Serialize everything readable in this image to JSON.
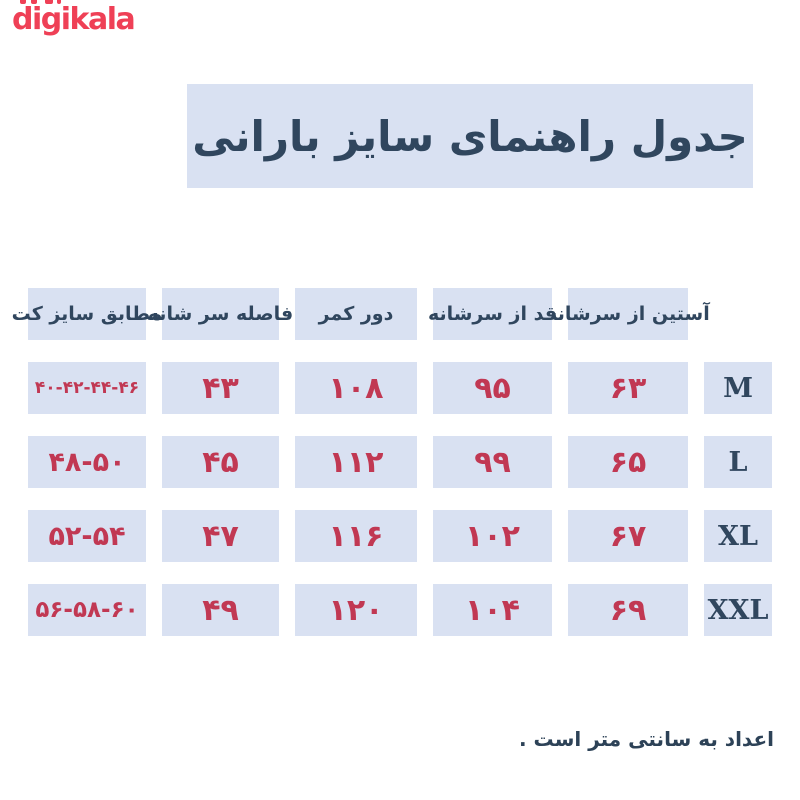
{
  "logo": {
    "text": "digikala"
  },
  "banner": {
    "title": "جدول راهنمای سایز بارانی"
  },
  "table": {
    "headers": [
      "آستین از سرشانه",
      "قد از سرشانه",
      "دور کمر",
      "فاصله سر شانه",
      "مطابق سایز کت"
    ],
    "rows": [
      {
        "size": "M",
        "sleeve": "۶۳",
        "height": "۹۵",
        "waist": "۱۰۸",
        "shoulder": "۴۳",
        "jacket": "۴۰-۴۲-۴۴-۴۶"
      },
      {
        "size": "L",
        "sleeve": "۶۵",
        "height": "۹۹",
        "waist": "۱۱۲",
        "shoulder": "۴۵",
        "jacket": "۴۸-۵۰"
      },
      {
        "size": "XL",
        "sleeve": "۶۷",
        "height": "۱۰۲",
        "waist": "۱۱۶",
        "shoulder": "۴۷",
        "jacket": "۵۲-۵۴"
      },
      {
        "size": "XXL",
        "sleeve": "۶۹",
        "height": "۱۰۴",
        "waist": "۱۲۰",
        "shoulder": "۴۹",
        "jacket": "۵۶-۵۸-۶۰"
      }
    ]
  },
  "footer": {
    "note": "اعداد به سانتی متر است ."
  },
  "colors": {
    "brand_red": "#ef4056",
    "number_red": "#c13853",
    "cell_bg": "#d9e1f2",
    "navy_text": "#30465e"
  }
}
